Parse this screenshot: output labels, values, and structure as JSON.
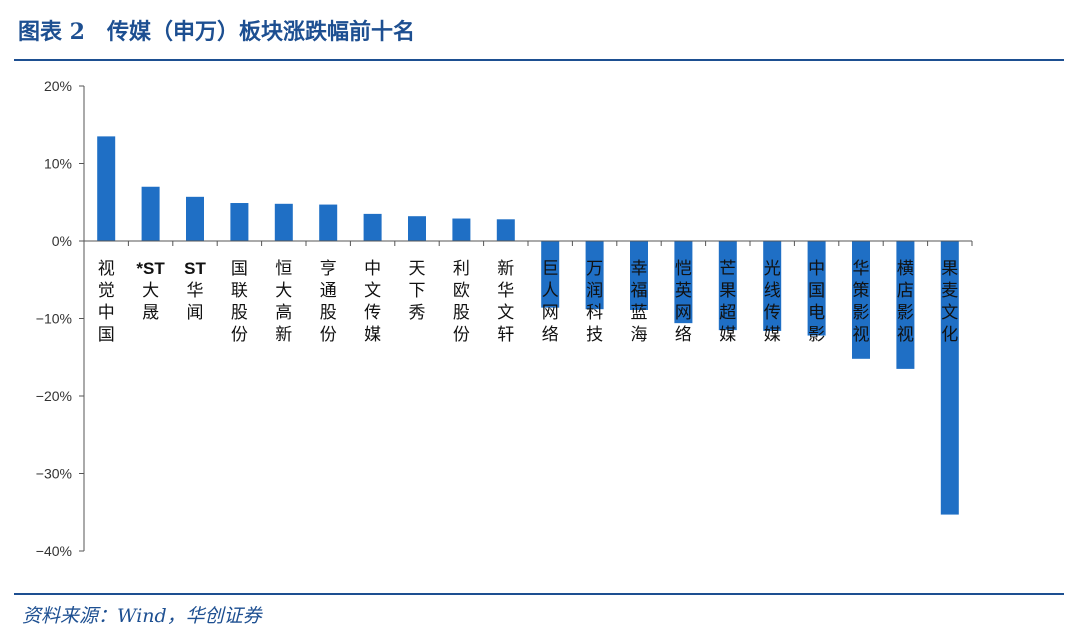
{
  "figure": {
    "title": "图表 2　传媒（申万）板块涨跌幅前十名",
    "source": "资料来源：Wind，华创证券"
  },
  "colors": {
    "bar": "#1f6fc5",
    "axis": "#555555",
    "accent": "#1d4f91"
  },
  "chart_data": {
    "type": "bar",
    "categories": [
      "视觉中国",
      "*ST大晟",
      "ST华闻",
      "国联股份",
      "恒大高新",
      "亨通股份",
      "中文传媒",
      "天下秀",
      "利欧股份",
      "新华文轩",
      "巨人网络",
      "万润科技",
      "幸福蓝海",
      "恺英网络",
      "芒果超媒",
      "光线传媒",
      "中国电影",
      "华策影视",
      "横店影视",
      "果麦文化"
    ],
    "values": [
      13.5,
      7.0,
      5.7,
      4.9,
      4.8,
      4.7,
      3.5,
      3.2,
      2.9,
      2.8,
      -8.6,
      -8.8,
      -8.9,
      -10.6,
      -11.5,
      -11.6,
      -12.2,
      -15.2,
      -16.5,
      -35.3
    ],
    "yticks": [
      20,
      10,
      0,
      -10,
      -20,
      -30,
      -40
    ],
    "ytick_labels": [
      "20%",
      "10%",
      "0%",
      "−10%",
      "−20%",
      "−30%",
      "−40%"
    ],
    "ylim": [
      -40,
      20
    ],
    "title": "",
    "xlabel": "",
    "ylabel": "",
    "grid": false,
    "legend": "none"
  }
}
